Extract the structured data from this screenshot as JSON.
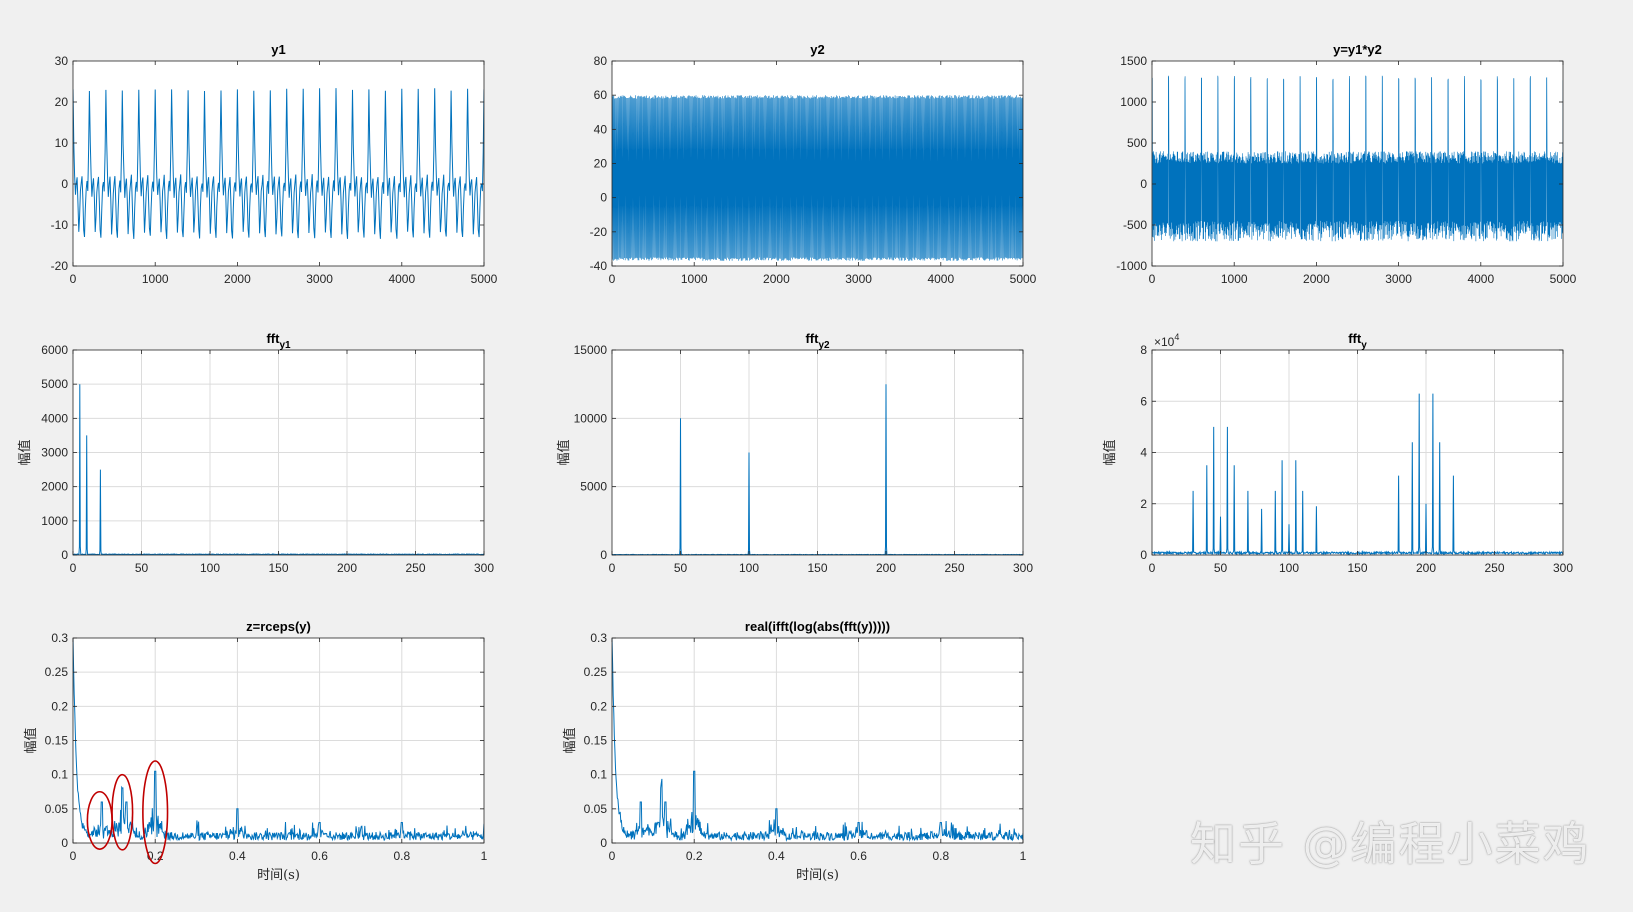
{
  "figure": {
    "background": "#f0f0f0",
    "line_color": "#0072bd",
    "annotation_color": "#c00000"
  },
  "watermark": "知乎 @编程小菜鸡",
  "chart_data": [
    {
      "id": "y1",
      "type": "line",
      "title": "y1",
      "title_sub": "",
      "xlabel": "",
      "ylabel": "",
      "xlim": [
        0,
        5000
      ],
      "ylim": [
        -20,
        30
      ],
      "xticks": [
        0,
        1000,
        2000,
        3000,
        4000,
        5000
      ],
      "yticks": [
        -20,
        -10,
        0,
        10,
        20,
        30
      ],
      "ytick_labels": [
        "-20",
        "-10",
        "0",
        "10",
        "20",
        "30"
      ],
      "grid": false,
      "series": [
        {
          "kind": "periodic",
          "period": 200,
          "samples_per_period": 20,
          "shape": [
            23,
            10,
            2,
            -3,
            0,
            1.5,
            -4,
            -12,
            -8,
            -2,
            0,
            2,
            -4,
            -11,
            -13,
            -6,
            -1,
            0.5,
            -2,
            8
          ],
          "values": []
        }
      ]
    },
    {
      "id": "y2",
      "type": "line",
      "title": "y2",
      "title_sub": "",
      "xlabel": "",
      "ylabel": "",
      "xlim": [
        0,
        5000
      ],
      "ylim": [
        -40,
        80
      ],
      "xticks": [
        0,
        1000,
        2000,
        3000,
        4000,
        5000
      ],
      "yticks": [
        -40,
        -20,
        0,
        20,
        40,
        60,
        80
      ],
      "ytick_labels": [
        "-40",
        "-20",
        "0",
        "20",
        "40",
        "60",
        "80"
      ],
      "grid": false,
      "series": [
        {
          "kind": "dense_band",
          "band": [
            -37,
            60
          ],
          "core": [
            -33,
            21
          ],
          "count": 220,
          "values": []
        }
      ]
    },
    {
      "id": "y",
      "type": "line",
      "title": "y=y1*y2",
      "title_sub": "",
      "xlabel": "",
      "ylabel": "",
      "xlim": [
        0,
        5000
      ],
      "ylim": [
        -1000,
        1500
      ],
      "xticks": [
        0,
        1000,
        2000,
        3000,
        4000,
        5000
      ],
      "yticks": [
        -1000,
        -500,
        0,
        500,
        1000,
        1500
      ],
      "ytick_labels": [
        "-1000",
        "-500",
        "0",
        "500",
        "1000",
        "1500"
      ],
      "grid": false,
      "series": [
        {
          "kind": "spiky",
          "spike_period": 200,
          "spike_height": 1320,
          "band": [
            -700,
            400
          ],
          "core": [
            -350,
            250
          ],
          "count": 260,
          "values": []
        }
      ]
    },
    {
      "id": "fft_y1",
      "type": "line",
      "title": "fft",
      "title_sub": "y1",
      "xlabel": "",
      "ylabel": "幅值",
      "xlim": [
        0,
        300
      ],
      "ylim": [
        0,
        6000
      ],
      "xticks": [
        0,
        50,
        100,
        150,
        200,
        250,
        300
      ],
      "yticks": [
        0,
        1000,
        2000,
        3000,
        4000,
        5000,
        6000
      ],
      "ytick_labels": [
        "0",
        "1000",
        "2000",
        "3000",
        "4000",
        "5000",
        "6000"
      ],
      "grid": true,
      "series": [
        {
          "kind": "peaks",
          "baseline": 20,
          "peaks": [
            [
              5,
              5000
            ],
            [
              10,
              3500
            ],
            [
              20,
              2500
            ]
          ],
          "values": []
        }
      ]
    },
    {
      "id": "fft_y2",
      "type": "line",
      "title": "fft",
      "title_sub": "y2",
      "xlabel": "",
      "ylabel": "幅值",
      "xlim": [
        0,
        300
      ],
      "ylim": [
        0,
        15000
      ],
      "xticks": [
        0,
        50,
        100,
        150,
        200,
        250,
        300
      ],
      "yticks": [
        0,
        5000,
        10000,
        15000
      ],
      "ytick_labels": [
        "0",
        "5000",
        "10000",
        "15000"
      ],
      "grid": true,
      "series": [
        {
          "kind": "peaks",
          "baseline": 30,
          "peaks": [
            [
              50,
              10000
            ],
            [
              100,
              7500
            ],
            [
              200,
              12500
            ]
          ],
          "values": []
        }
      ]
    },
    {
      "id": "fft_y",
      "type": "line",
      "title": "fft",
      "title_sub": "y",
      "xlabel": "",
      "ylabel": "幅值",
      "yscale_label": "10",
      "yscale_exp": "4",
      "xlim": [
        0,
        300
      ],
      "ylim": [
        0,
        8
      ],
      "xticks": [
        0,
        50,
        100,
        150,
        200,
        250,
        300
      ],
      "yticks": [
        0,
        2,
        4,
        6,
        8
      ],
      "ytick_labels": [
        "0",
        "2",
        "4",
        "6",
        "8"
      ],
      "grid": true,
      "series": [
        {
          "kind": "peaks",
          "baseline": 0.08,
          "peaks": [
            [
              30,
              2.5
            ],
            [
              40,
              3.5
            ],
            [
              45,
              5.0
            ],
            [
              50,
              1.5
            ],
            [
              55,
              5.0
            ],
            [
              60,
              3.5
            ],
            [
              70,
              2.5
            ],
            [
              80,
              1.8
            ],
            [
              90,
              2.5
            ],
            [
              95,
              3.7
            ],
            [
              100,
              1.2
            ],
            [
              105,
              3.7
            ],
            [
              110,
              2.5
            ],
            [
              120,
              1.9
            ],
            [
              180,
              3.1
            ],
            [
              190,
              4.4
            ],
            [
              195,
              6.3
            ],
            [
              200,
              2.0
            ],
            [
              205,
              6.3
            ],
            [
              210,
              4.4
            ],
            [
              220,
              3.1
            ]
          ],
          "values": []
        }
      ]
    },
    {
      "id": "cepstrum",
      "type": "line",
      "title": "z=rceps(y)",
      "title_sub": "",
      "xlabel": "时间(s)",
      "ylabel": "幅值",
      "xlim": [
        0,
        1
      ],
      "ylim": [
        0,
        0.3
      ],
      "xticks": [
        0,
        0.2,
        0.4,
        0.6,
        0.8,
        1
      ],
      "yticks": [
        0,
        0.05,
        0.1,
        0.15,
        0.2,
        0.25,
        0.3
      ],
      "xtick_labels": [
        "0",
        "0.2",
        "0.4",
        "0.6",
        "0.8",
        "1"
      ],
      "ytick_labels": [
        "0",
        "0.05",
        "0.1",
        "0.15",
        "0.2",
        "0.25",
        "0.3"
      ],
      "grid": true,
      "series": [
        {
          "kind": "cepstrum",
          "start": 0.3,
          "peaks": [
            [
              0.07,
              0.06
            ],
            [
              0.12,
              0.08
            ],
            [
              0.13,
              0.06
            ],
            [
              0.2,
              0.105
            ],
            [
              0.4,
              0.05
            ],
            [
              0.6,
              0.03
            ],
            [
              0.8,
              0.03
            ]
          ],
          "values": []
        }
      ],
      "annotations": [
        {
          "type": "ellipse",
          "cx": 0.065,
          "cy": 0.033,
          "rx": 0.03,
          "ry": 0.042
        },
        {
          "type": "ellipse",
          "cx": 0.12,
          "cy": 0.045,
          "rx": 0.025,
          "ry": 0.055
        },
        {
          "type": "ellipse",
          "cx": 0.2,
          "cy": 0.045,
          "rx": 0.03,
          "ry": 0.075
        }
      ]
    },
    {
      "id": "real_ifft",
      "type": "line",
      "title": "real(ifft(log(abs(fft(y)))))",
      "title_sub": "",
      "xlabel": "时间(s)",
      "ylabel": "幅值",
      "xlim": [
        0,
        1
      ],
      "ylim": [
        0,
        0.3
      ],
      "xticks": [
        0,
        0.2,
        0.4,
        0.6,
        0.8,
        1
      ],
      "yticks": [
        0,
        0.05,
        0.1,
        0.15,
        0.2,
        0.25,
        0.3
      ],
      "xtick_labels": [
        "0",
        "0.2",
        "0.4",
        "0.6",
        "0.8",
        "1"
      ],
      "ytick_labels": [
        "0",
        "0.05",
        "0.1",
        "0.15",
        "0.2",
        "0.25",
        "0.3"
      ],
      "grid": true,
      "series": [
        {
          "kind": "cepstrum",
          "start": 0.3,
          "peaks": [
            [
              0.07,
              0.06
            ],
            [
              0.12,
              0.08
            ],
            [
              0.13,
              0.06
            ],
            [
              0.2,
              0.105
            ],
            [
              0.4,
              0.05
            ],
            [
              0.6,
              0.03
            ],
            [
              0.8,
              0.03
            ]
          ],
          "values": []
        }
      ]
    }
  ]
}
